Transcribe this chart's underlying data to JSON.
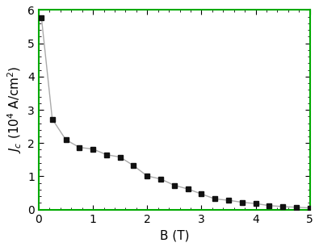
{
  "x": [
    0.05,
    0.25,
    0.5,
    0.75,
    1.0,
    1.25,
    1.5,
    1.75,
    2.0,
    2.25,
    2.5,
    2.75,
    3.0,
    3.25,
    3.5,
    3.75,
    4.0,
    4.25,
    4.5,
    4.75,
    5.0
  ],
  "y": [
    5.78,
    2.72,
    2.1,
    1.87,
    1.82,
    1.65,
    1.58,
    1.32,
    1.01,
    0.92,
    0.73,
    0.62,
    0.47,
    0.32,
    0.28,
    0.22,
    0.18,
    0.12,
    0.09,
    0.07,
    0.05
  ],
  "xlabel": "B (T)",
  "ylabel": "J_c (10⁴ A/cm²)",
  "xlim": [
    0,
    5
  ],
  "ylim": [
    0,
    6
  ],
  "xticks": [
    0,
    1,
    2,
    3,
    4,
    5
  ],
  "yticks": [
    0,
    1,
    2,
    3,
    4,
    5,
    6
  ],
  "line_color": "#aaaaaa",
  "marker_color": "#111111",
  "marker_style": "s",
  "marker_size": 5,
  "line_width": 1.0,
  "border_color": "#00aa00",
  "background_color": "#ffffff"
}
